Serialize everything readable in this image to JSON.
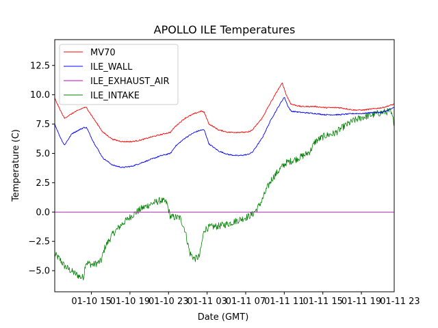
{
  "chart_data": {
    "type": "line",
    "title": "APOLLO ILE Temperatures",
    "xlabel": "Date (GMT)",
    "ylabel": "Temperature (C)",
    "xlim_hours": [
      0,
      35.2
    ],
    "ylim": [
      -6.8,
      14.7
    ],
    "x_ticks": [
      {
        "label": "01-10 15",
        "hour": 3.8
      },
      {
        "label": "01-10 19",
        "hour": 7.8
      },
      {
        "label": "01-10 23",
        "hour": 11.8
      },
      {
        "label": "01-11 03",
        "hour": 15.8
      },
      {
        "label": "01-11 07",
        "hour": 19.8
      },
      {
        "label": "01-11 11",
        "hour": 23.8
      },
      {
        "label": "01-11 15",
        "hour": 27.8
      },
      {
        "label": "01-11 19",
        "hour": 31.8
      },
      {
        "label": "01-11 23",
        "hour": 35.8
      }
    ],
    "y_ticks": [
      {
        "label": "−5.0",
        "value": -5.0
      },
      {
        "label": "−2.5",
        "value": -2.5
      },
      {
        "label": "0.0",
        "value": 0.0
      },
      {
        "label": "2.5",
        "value": 2.5
      },
      {
        "label": "5.0",
        "value": 5.0
      },
      {
        "label": "7.5",
        "value": 7.5
      },
      {
        "label": "10.0",
        "value": 10.0
      },
      {
        "label": "12.5",
        "value": 12.5
      }
    ],
    "legend_position": "upper-left",
    "series": [
      {
        "name": "MV70",
        "color": "#ff0000",
        "noise": 0.05,
        "points": [
          [
            0,
            9.7
          ],
          [
            0.5,
            8.8
          ],
          [
            1.0,
            8.0
          ],
          [
            2.0,
            8.5
          ],
          [
            3.0,
            8.9
          ],
          [
            3.3,
            8.9
          ],
          [
            4.0,
            8.0
          ],
          [
            5.0,
            6.8
          ],
          [
            6.0,
            6.2
          ],
          [
            7.0,
            6.0
          ],
          [
            8.0,
            6.0
          ],
          [
            9.0,
            6.15
          ],
          [
            10.0,
            6.4
          ],
          [
            11.0,
            6.6
          ],
          [
            12.0,
            6.8
          ],
          [
            12.5,
            7.3
          ],
          [
            13.5,
            8.0
          ],
          [
            14.5,
            8.4
          ],
          [
            15.2,
            8.6
          ],
          [
            15.5,
            8.5
          ],
          [
            16.0,
            7.5
          ],
          [
            17.0,
            7.0
          ],
          [
            18.0,
            6.8
          ],
          [
            19.0,
            6.8
          ],
          [
            20.0,
            6.8
          ],
          [
            20.5,
            7.0
          ],
          [
            21.5,
            8.0
          ],
          [
            22.5,
            9.5
          ],
          [
            23.2,
            10.5
          ],
          [
            23.6,
            11.0
          ],
          [
            24.0,
            10.0
          ],
          [
            24.5,
            9.2
          ],
          [
            25.5,
            9.0
          ],
          [
            27.0,
            9.0
          ],
          [
            28.0,
            8.9
          ],
          [
            29.5,
            8.9
          ],
          [
            31.0,
            8.7
          ],
          [
            32.0,
            8.7
          ],
          [
            33.0,
            8.8
          ],
          [
            34.0,
            8.9
          ],
          [
            35.2,
            9.2
          ]
        ]
      },
      {
        "name": "ILE_WALL",
        "color": "#0000ff",
        "noise": 0.05,
        "points": [
          [
            0,
            7.5
          ],
          [
            0.5,
            6.5
          ],
          [
            1.0,
            5.7
          ],
          [
            1.8,
            6.7
          ],
          [
            3.0,
            7.2
          ],
          [
            3.3,
            7.2
          ],
          [
            4.0,
            6.0
          ],
          [
            5.0,
            4.6
          ],
          [
            6.0,
            4.0
          ],
          [
            7.0,
            3.8
          ],
          [
            8.0,
            3.9
          ],
          [
            9.0,
            4.2
          ],
          [
            10.0,
            4.5
          ],
          [
            11.0,
            4.8
          ],
          [
            12.0,
            5.0
          ],
          [
            12.5,
            5.6
          ],
          [
            13.5,
            6.3
          ],
          [
            14.5,
            6.8
          ],
          [
            15.2,
            7.0
          ],
          [
            15.5,
            7.0
          ],
          [
            16.0,
            5.8
          ],
          [
            17.0,
            5.2
          ],
          [
            18.0,
            4.9
          ],
          [
            19.0,
            4.8
          ],
          [
            20.0,
            4.9
          ],
          [
            20.5,
            5.1
          ],
          [
            21.5,
            6.3
          ],
          [
            22.5,
            8.0
          ],
          [
            23.5,
            9.4
          ],
          [
            23.8,
            9.8
          ],
          [
            24.2,
            9.0
          ],
          [
            24.5,
            8.6
          ],
          [
            25.5,
            8.5
          ],
          [
            27.0,
            8.4
          ],
          [
            28.0,
            8.3
          ],
          [
            29.5,
            8.3
          ],
          [
            31.0,
            8.4
          ],
          [
            32.0,
            8.4
          ],
          [
            33.0,
            8.5
          ],
          [
            34.0,
            8.5
          ],
          [
            35.2,
            8.9
          ]
        ]
      },
      {
        "name": "ILE_EXHAUST_AIR",
        "color": "#bf00bf",
        "noise": 0,
        "points": [
          [
            0,
            0.0
          ],
          [
            35.2,
            0.0
          ]
        ]
      },
      {
        "name": "ILE_INTAKE",
        "color": "#008000",
        "noise": 0.3,
        "points": [
          [
            0,
            -3.6
          ],
          [
            0.5,
            -4.0
          ],
          [
            1.0,
            -4.6
          ],
          [
            2.0,
            -5.2
          ],
          [
            2.8,
            -5.6
          ],
          [
            3.0,
            -5.5
          ],
          [
            3.2,
            -4.3
          ],
          [
            4.0,
            -4.5
          ],
          [
            4.8,
            -4.2
          ],
          [
            5.2,
            -3.0
          ],
          [
            6.0,
            -1.9
          ],
          [
            7.0,
            -1.0
          ],
          [
            8.0,
            -0.3
          ],
          [
            9.0,
            0.3
          ],
          [
            10.0,
            0.7
          ],
          [
            11.0,
            1.0
          ],
          [
            11.6,
            0.8
          ],
          [
            12.0,
            -0.4
          ],
          [
            13.0,
            -0.5
          ],
          [
            13.5,
            -1.5
          ],
          [
            14.0,
            -3.5
          ],
          [
            14.5,
            -4.0
          ],
          [
            15.0,
            -3.8
          ],
          [
            15.5,
            -1.5
          ],
          [
            16.0,
            -1.3
          ],
          [
            17.0,
            -1.2
          ],
          [
            18.0,
            -1.0
          ],
          [
            19.0,
            -0.7
          ],
          [
            20.0,
            -0.4
          ],
          [
            20.5,
            -0.2
          ],
          [
            21.0,
            0.3
          ],
          [
            21.5,
            1.0
          ],
          [
            22.0,
            2.0
          ],
          [
            22.5,
            2.8
          ],
          [
            23.5,
            3.8
          ],
          [
            24.0,
            4.2
          ],
          [
            25.0,
            4.5
          ],
          [
            26.0,
            4.9
          ],
          [
            26.5,
            5.2
          ],
          [
            27.0,
            6.0
          ],
          [
            28.0,
            6.5
          ],
          [
            29.0,
            6.7
          ],
          [
            30.0,
            7.3
          ],
          [
            31.0,
            7.8
          ],
          [
            32.0,
            8.1
          ],
          [
            33.0,
            8.3
          ],
          [
            34.0,
            8.5
          ],
          [
            34.8,
            8.6
          ],
          [
            35.2,
            7.6
          ]
        ]
      }
    ]
  }
}
